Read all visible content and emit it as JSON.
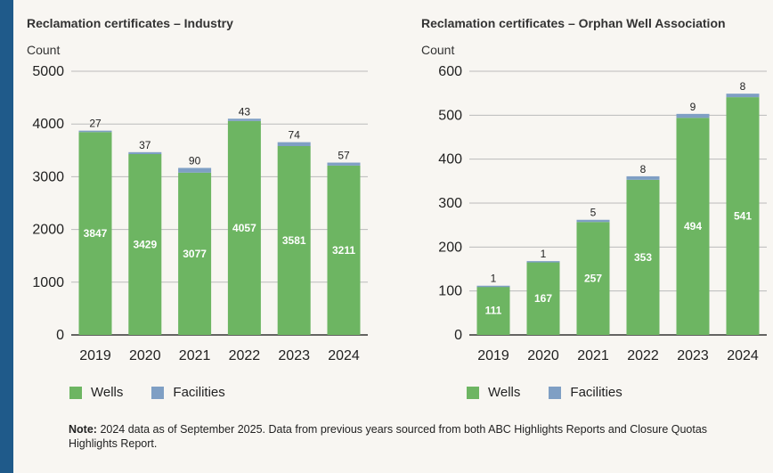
{
  "colors": {
    "wells": "#6db562",
    "facilities": "#7f9fc4",
    "grid": "#bbbbbb",
    "accent_bar": "#1f5a8a"
  },
  "legend": {
    "wells": "Wells",
    "facilities": "Facilities"
  },
  "note": {
    "label": "Note:",
    "text": "2024 data as of September 2025. Data from previous years sourced from both ABC Highlights Reports and Closure Quotas Highlights Report."
  },
  "chart_data": [
    {
      "type": "bar",
      "stacked": true,
      "title": "Reclamation certificates – Industry",
      "ylabel": "Count",
      "xlabel": "",
      "categories": [
        "2019",
        "2020",
        "2021",
        "2022",
        "2023",
        "2024"
      ],
      "series": [
        {
          "name": "Wells",
          "values": [
            3847,
            3429,
            3077,
            4057,
            3581,
            3211
          ]
        },
        {
          "name": "Facilities",
          "values": [
            27,
            37,
            90,
            43,
            74,
            57
          ]
        }
      ],
      "ylim": [
        0,
        5000
      ],
      "yticks": [
        0,
        1000,
        2000,
        3000,
        4000,
        5000
      ],
      "grid": true,
      "legend": "bottom"
    },
    {
      "type": "bar",
      "stacked": true,
      "title": "Reclamation certificates – Orphan Well Association",
      "ylabel": "Count",
      "xlabel": "",
      "categories": [
        "2019",
        "2020",
        "2021",
        "2022",
        "2023",
        "2024"
      ],
      "series": [
        {
          "name": "Wells",
          "values": [
            111,
            167,
            257,
            353,
            494,
            541
          ]
        },
        {
          "name": "Facilities",
          "values": [
            1,
            1,
            5,
            8,
            9,
            8
          ]
        }
      ],
      "ylim": [
        0,
        600
      ],
      "yticks": [
        0,
        100,
        200,
        300,
        400,
        500,
        600
      ],
      "grid": true,
      "legend": "bottom"
    }
  ]
}
